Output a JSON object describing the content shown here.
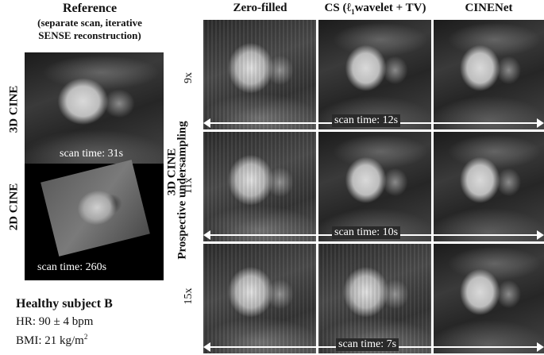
{
  "reference": {
    "title": "Reference",
    "subtitle_line1": "(separate scan, iterative",
    "subtitle_line2": "SENSE reconstruction)",
    "row_3d_label": "3D CINE",
    "row_2d_label": "2D CINE",
    "scan_3d": "scan time: 31s",
    "scan_2d": "scan time: 260s"
  },
  "columns": {
    "zero_filled": "Zero-filled",
    "cs_prefix": "CS (",
    "cs_l": "ℓ",
    "cs_sub": "1",
    "cs_suffix": "wavelet + TV)",
    "cinenet": "CINENet"
  },
  "side_label": {
    "line1": "3D CINE",
    "line2": "Prospective undersampling"
  },
  "rows": [
    {
      "factor": "9x",
      "scan_time": "scan time: 12s"
    },
    {
      "factor": "11x",
      "scan_time": "scan time: 10s"
    },
    {
      "factor": "15x",
      "scan_time": "scan time: 7s"
    }
  ],
  "subject": {
    "name": "Healthy subject B",
    "hr": "HR: 90 ± 4 bpm",
    "bmi_prefix": "BMI: 21 kg/m",
    "bmi_sup": "2"
  }
}
